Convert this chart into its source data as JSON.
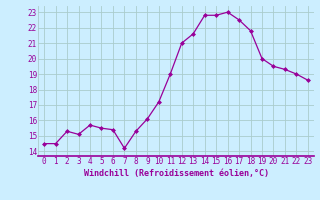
{
  "x": [
    0,
    1,
    2,
    3,
    4,
    5,
    6,
    7,
    8,
    9,
    10,
    11,
    12,
    13,
    14,
    15,
    16,
    17,
    18,
    19,
    20,
    21,
    22,
    23
  ],
  "y": [
    14.5,
    14.5,
    15.3,
    15.1,
    15.7,
    15.5,
    15.4,
    14.2,
    15.3,
    16.1,
    17.2,
    19.0,
    21.0,
    21.6,
    22.8,
    22.8,
    23.0,
    22.5,
    21.8,
    20.0,
    19.5,
    19.3,
    19.0,
    18.6
  ],
  "line_color": "#990099",
  "marker": "D",
  "marker_size": 2,
  "linewidth": 0.9,
  "xlabel": "Windchill (Refroidissement éolien,°C)",
  "xlabel_fontsize": 6,
  "ytick_labels": [
    "14",
    "15",
    "16",
    "17",
    "18",
    "19",
    "20",
    "21",
    "22",
    "23"
  ],
  "ytick_values": [
    14,
    15,
    16,
    17,
    18,
    19,
    20,
    21,
    22,
    23
  ],
  "ylim": [
    13.7,
    23.4
  ],
  "xlim": [
    -0.5,
    23.5
  ],
  "bg_color": "#cceeff",
  "grid_color": "#aacccc",
  "tick_label_fontsize": 5.5,
  "tick_label_color": "#990099",
  "xlabel_color": "#990099"
}
